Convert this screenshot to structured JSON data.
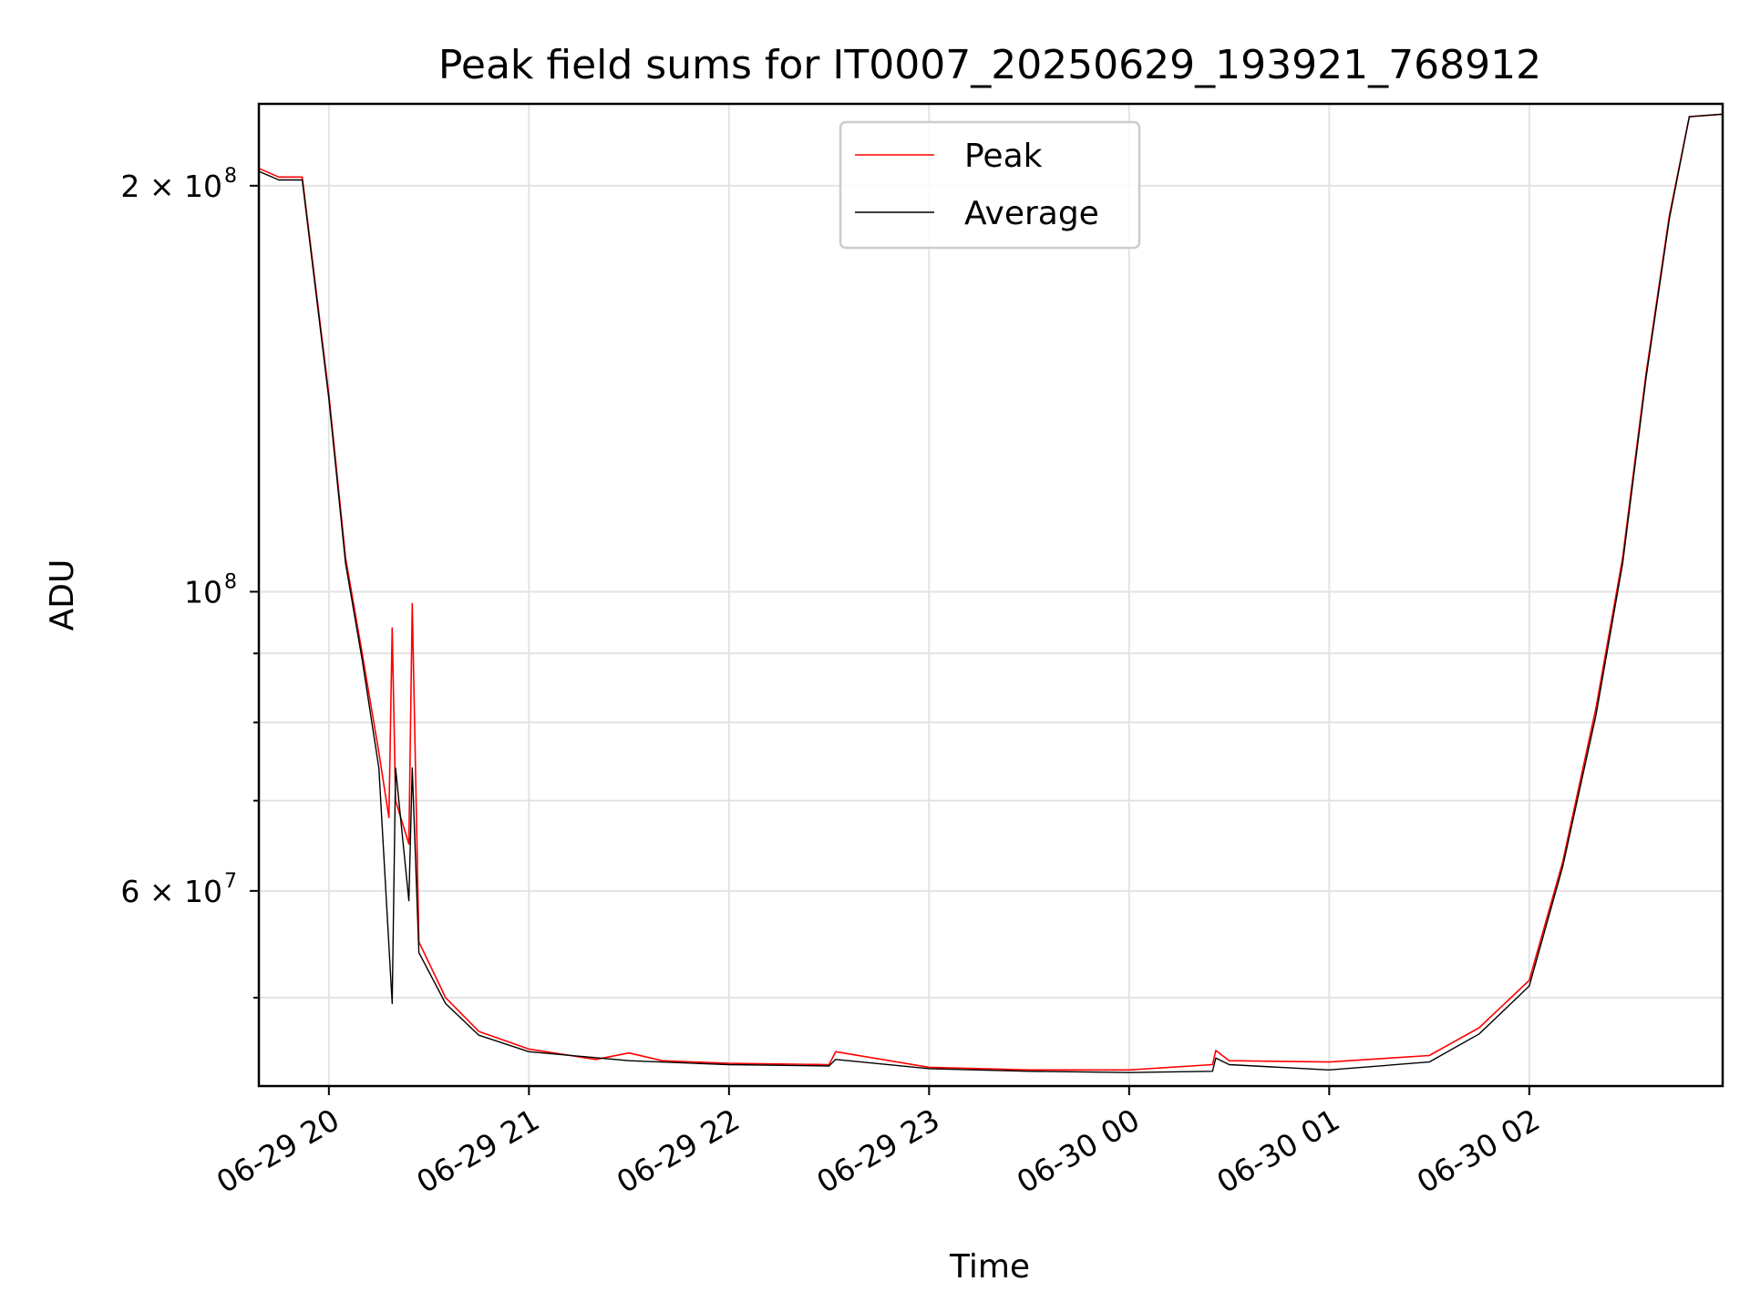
{
  "chart_data": {
    "type": "line",
    "title": "Peak field sums for IT0007_20250629_193921_768912",
    "xlabel": "Time",
    "ylabel": "ADU",
    "y_scale": "log",
    "grid": true,
    "legend_position": "upper center",
    "xlim": [
      "2025-06-29 19:39",
      "2025-06-30 02:58"
    ],
    "ylim": [
      43000000,
      230000000
    ],
    "x_ticks": [
      {
        "t": "2025-06-29 20:00",
        "label": "06-29 20"
      },
      {
        "t": "2025-06-29 21:00",
        "label": "06-29 21"
      },
      {
        "t": "2025-06-29 22:00",
        "label": "06-29 22"
      },
      {
        "t": "2025-06-29 23:00",
        "label": "06-29 23"
      },
      {
        "t": "2025-06-30 00:00",
        "label": "06-30 00"
      },
      {
        "t": "2025-06-30 01:00",
        "label": "06-30 01"
      },
      {
        "t": "2025-06-30 02:00",
        "label": "06-30 02"
      }
    ],
    "y_ticks_major": [
      {
        "value": 200000000,
        "base": "2 × 10",
        "exp": "8"
      },
      {
        "value": 100000000,
        "base": "10",
        "exp": "8"
      },
      {
        "value": 60000000,
        "base": "6 × 10",
        "exp": "7"
      }
    ],
    "y_ticks_minor": [
      50000000,
      70000000,
      80000000,
      90000000
    ],
    "series": [
      {
        "name": "Peak",
        "color": "#ff0000",
        "points": [
          [
            "2025-06-29 19:39",
            206000000
          ],
          [
            "2025-06-29 19:45",
            203000000
          ],
          [
            "2025-06-29 19:52",
            203000000
          ],
          [
            "2025-06-29 20:00",
            140000000
          ],
          [
            "2025-06-29 20:05",
            106000000
          ],
          [
            "2025-06-29 20:10",
            90000000
          ],
          [
            "2025-06-29 20:15",
            76000000
          ],
          [
            "2025-06-29 20:18",
            68000000
          ],
          [
            "2025-06-29 20:19",
            94000000
          ],
          [
            "2025-06-29 20:20",
            70000000
          ],
          [
            "2025-06-29 20:24",
            65000000
          ],
          [
            "2025-06-29 20:25",
            98000000
          ],
          [
            "2025-06-29 20:27",
            55000000
          ],
          [
            "2025-06-29 20:35",
            50000000
          ],
          [
            "2025-06-29 20:45",
            47200000
          ],
          [
            "2025-06-29 21:00",
            45800000
          ],
          [
            "2025-06-29 21:20",
            45000000
          ],
          [
            "2025-06-29 21:30",
            45500000
          ],
          [
            "2025-06-29 21:40",
            44900000
          ],
          [
            "2025-06-29 22:00",
            44700000
          ],
          [
            "2025-06-29 22:30",
            44600000
          ],
          [
            "2025-06-29 22:32",
            45600000
          ],
          [
            "2025-06-29 23:00",
            44400000
          ],
          [
            "2025-06-29 23:30",
            44200000
          ],
          [
            "2025-06-30 00:00",
            44200000
          ],
          [
            "2025-06-30 00:25",
            44600000
          ],
          [
            "2025-06-30 00:26",
            45700000
          ],
          [
            "2025-06-30 00:30",
            44900000
          ],
          [
            "2025-06-30 01:00",
            44800000
          ],
          [
            "2025-06-30 01:30",
            45300000
          ],
          [
            "2025-06-30 01:45",
            47500000
          ],
          [
            "2025-06-30 02:00",
            51500000
          ],
          [
            "2025-06-30 02:10",
            63000000
          ],
          [
            "2025-06-30 02:20",
            82000000
          ],
          [
            "2025-06-30 02:28",
            106000000
          ],
          [
            "2025-06-30 02:35",
            145000000
          ],
          [
            "2025-06-30 02:42",
            190000000
          ],
          [
            "2025-06-30 02:48",
            225000000
          ],
          [
            "2025-06-30 02:58",
            226000000
          ]
        ]
      },
      {
        "name": "Average",
        "color": "#000000",
        "points": [
          [
            "2025-06-29 19:39",
            205000000
          ],
          [
            "2025-06-29 19:45",
            202000000
          ],
          [
            "2025-06-29 19:52",
            202000000
          ],
          [
            "2025-06-29 20:00",
            139000000
          ],
          [
            "2025-06-29 20:05",
            105000000
          ],
          [
            "2025-06-29 20:10",
            89000000
          ],
          [
            "2025-06-29 20:15",
            74000000
          ],
          [
            "2025-06-29 20:19",
            49500000
          ],
          [
            "2025-06-29 20:20",
            74000000
          ],
          [
            "2025-06-29 20:24",
            59000000
          ],
          [
            "2025-06-29 20:25",
            74000000
          ],
          [
            "2025-06-29 20:27",
            54000000
          ],
          [
            "2025-06-29 20:35",
            49500000
          ],
          [
            "2025-06-29 20:45",
            46900000
          ],
          [
            "2025-06-29 21:00",
            45600000
          ],
          [
            "2025-06-29 21:30",
            44900000
          ],
          [
            "2025-06-29 22:00",
            44600000
          ],
          [
            "2025-06-29 22:30",
            44500000
          ],
          [
            "2025-06-29 22:32",
            45000000
          ],
          [
            "2025-06-29 23:00",
            44300000
          ],
          [
            "2025-06-29 23:30",
            44100000
          ],
          [
            "2025-06-30 00:00",
            44000000
          ],
          [
            "2025-06-30 00:25",
            44100000
          ],
          [
            "2025-06-30 00:26",
            45100000
          ],
          [
            "2025-06-30 00:30",
            44600000
          ],
          [
            "2025-06-30 01:00",
            44200000
          ],
          [
            "2025-06-30 01:30",
            44800000
          ],
          [
            "2025-06-30 01:45",
            47000000
          ],
          [
            "2025-06-30 02:00",
            51000000
          ],
          [
            "2025-06-30 02:10",
            62500000
          ],
          [
            "2025-06-30 02:20",
            81000000
          ],
          [
            "2025-06-30 02:28",
            105000000
          ],
          [
            "2025-06-30 02:35",
            144000000
          ],
          [
            "2025-06-30 02:42",
            189000000
          ],
          [
            "2025-06-30 02:48",
            225000000
          ],
          [
            "2025-06-30 02:58",
            226000000
          ]
        ]
      }
    ]
  }
}
